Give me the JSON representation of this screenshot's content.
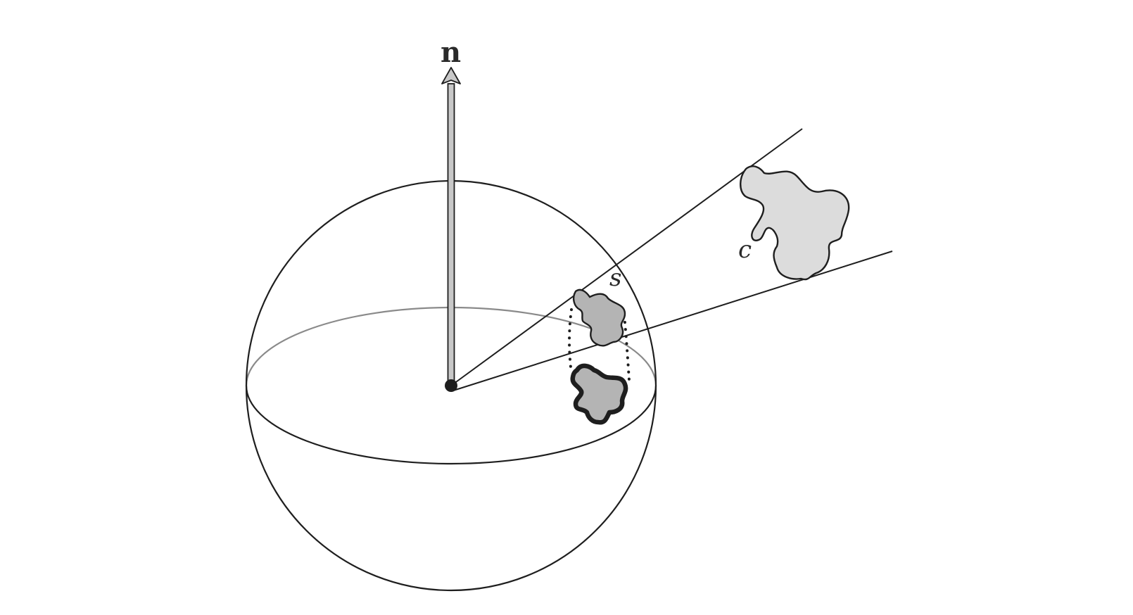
{
  "labels": {
    "normal": "n",
    "projected_patch": "s",
    "object": "c"
  },
  "colors": {
    "line": "#1e1e1e",
    "equator_back": "#8a8a8a",
    "shape_light": "#dcdcdc",
    "shape_mid": "#b4b4b4",
    "arrow_shaft": "#c8c8c8"
  }
}
